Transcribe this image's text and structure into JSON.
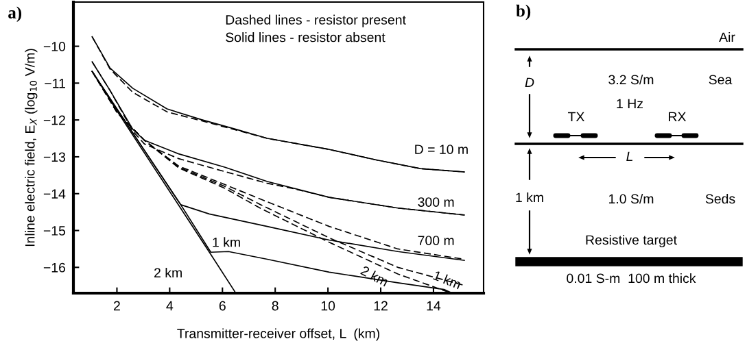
{
  "chart_data": [
    {
      "type": "line",
      "title": "a)",
      "xlabel": "Transmitter-receiver offset, L  (km)",
      "ylabel": "Inline electric field, E$_{X}$ (log$_{10}$ V/m)",
      "xlim": [
        0.35,
        15.9
      ],
      "ylim": [
        -16.7,
        -8.8
      ],
      "xticks": [
        2,
        4,
        6,
        8,
        10,
        12,
        14
      ],
      "yticks": [
        -10,
        -11,
        -12,
        -13,
        -14,
        -15,
        -16
      ],
      "grid": false,
      "series": [
        {
          "color": "#000000",
          "line_style": "solid",
          "x": [
            1.06,
            1.74,
            2.6,
            3.9,
            5.2,
            6.5,
            7.7,
            10.05,
            11.8,
            13.5,
            15.17
          ],
          "values": [
            -9.74,
            -10.59,
            -11.14,
            -11.7,
            -11.99,
            -12.25,
            -12.5,
            -12.8,
            -13.08,
            -13.32,
            -13.41
          ]
        },
        {
          "color": "#000000",
          "line_style": "dashed",
          "x": [
            1.06,
            1.74,
            2.6,
            3.9,
            5.2,
            6.5,
            7.7,
            10.05,
            11.8,
            13.5,
            15.17
          ],
          "values": [
            -9.74,
            -10.62,
            -11.25,
            -11.78,
            -12.02,
            -12.27,
            -12.5,
            -12.8,
            -13.08,
            -13.32,
            -13.41
          ]
        },
        {
          "color": "#000000",
          "line_style": "solid",
          "x": [
            1.06,
            1.74,
            2.6,
            3.04,
            4.34,
            6.08,
            7.7,
            10.05,
            12.65,
            15.17
          ],
          "values": [
            -10.42,
            -11.2,
            -12.25,
            -12.55,
            -12.92,
            -13.28,
            -13.67,
            -14.1,
            -14.39,
            -14.58
          ]
        },
        {
          "color": "#000000",
          "line_style": "dashed",
          "x": [
            1.06,
            1.74,
            2.6,
            3.04,
            4.34,
            6.08,
            7.7,
            8.6,
            10.05,
            12.65,
            15.17
          ],
          "values": [
            -10.42,
            -11.2,
            -12.3,
            -12.65,
            -13.05,
            -13.4,
            -13.72,
            -13.85,
            -14.1,
            -14.39,
            -14.58
          ]
        },
        {
          "color": "#000000",
          "line_style": "solid",
          "x": [
            1.06,
            2,
            3,
            4.42,
            5.5,
            7.7,
            10.05,
            12.65,
            15.17
          ],
          "values": [
            -10.68,
            -11.7,
            -12.78,
            -14.3,
            -14.55,
            -14.89,
            -15.26,
            -15.57,
            -15.81
          ]
        },
        {
          "color": "#000000",
          "line_style": "dashed",
          "x": [
            1.06,
            2,
            3.04,
            4.34,
            6.08,
            7.45,
            10.05,
            12.65,
            15.17
          ],
          "values": [
            -10.68,
            -11.79,
            -12.55,
            -13.25,
            -13.75,
            -14.15,
            -14.89,
            -15.5,
            -15.78
          ]
        },
        {
          "color": "#000000",
          "line_style": "solid",
          "x": [
            1.06,
            2,
            3,
            4.42,
            5.56,
            6.23,
            7.7,
            10.05,
            12.65,
            14.4,
            14.65
          ],
          "values": [
            -10.68,
            -11.7,
            -12.78,
            -14.3,
            -15.59,
            -15.57,
            -15.78,
            -16.13,
            -16.42,
            -16.6,
            -16.68
          ]
        },
        {
          "color": "#000000",
          "line_style": "dashed",
          "x": [
            1.06,
            2,
            3.04,
            4.34,
            6.08,
            7.45,
            10.05,
            12.65,
            15.17
          ],
          "values": [
            -10.68,
            -11.79,
            -12.55,
            -13.28,
            -13.8,
            -14.3,
            -15.2,
            -16.0,
            -16.49
          ]
        },
        {
          "color": "#000000",
          "line_style": "solid",
          "x": [
            1.06,
            2,
            3,
            4.42,
            5.56,
            6.49
          ],
          "values": [
            -10.68,
            -11.75,
            -12.85,
            -14.4,
            -15.65,
            -16.68
          ]
        },
        {
          "color": "#000000",
          "line_style": "dashed",
          "x": [
            1.06,
            2,
            3.04,
            4.34,
            6.08,
            7.45,
            10.05,
            12.65,
            14.6
          ],
          "values": [
            -10.68,
            -11.79,
            -12.55,
            -13.3,
            -13.85,
            -14.4,
            -15.32,
            -16.18,
            -16.68
          ]
        }
      ],
      "annotations": [
        "Dashed lines - resistor present",
        "Solid lines - resistor absent",
        "D = 10 m",
        "300 m",
        "700 m",
        "1 km",
        "2 km",
        "2 km",
        "1 km"
      ]
    },
    {
      "type": "other",
      "title": "b)",
      "annotations": [
        "Air",
        "D",
        "3.2 S/m",
        "Sea",
        "1 Hz",
        "TX",
        "RX",
        "L",
        "1 km",
        "1.0 S/m",
        "Seds",
        "Resistive target",
        "0.01 S-m  100 m thick"
      ]
    }
  ]
}
